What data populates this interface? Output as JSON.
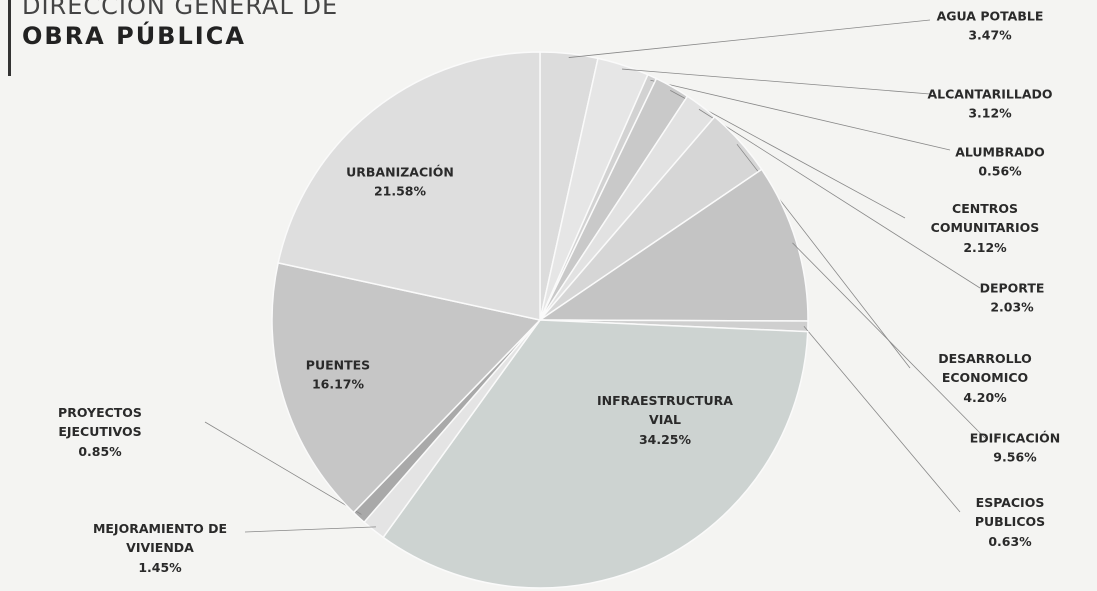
{
  "chart_data": {
    "type": "pie",
    "title": "DIRECCIÓN GENERAL DE",
    "subtitle": "OBRA PÚBLICA",
    "categories": [
      "AGUA POTABLE",
      "ALCANTARILLADO",
      "ALUMBRADO",
      "CENTROS COMUNITARIOS",
      "DEPORTE",
      "DESARROLLO ECONOMICO",
      "EDIFICACIÓN",
      "ESPACIOS PUBLICOS",
      "INFRAESTRUCTURA VIAL",
      "MEJORAMIENTO DE VIVIENDA",
      "PROYECTOS EJECUTIVOS",
      "PUENTES",
      "URBANIZACIÓN"
    ],
    "values": [
      3.47,
      3.12,
      0.56,
      2.12,
      2.03,
      4.2,
      9.56,
      0.63,
      34.25,
      1.45,
      0.85,
      16.17,
      21.58
    ],
    "value_labels": [
      "3.47%",
      "3.12%",
      "0.56%",
      "2.12%",
      "2.03%",
      "4.20%",
      "9.56%",
      "0.63%",
      "34.25%",
      "1.45%",
      "0.85%",
      "16.17%",
      "21.58%"
    ],
    "colors": [
      "#dcdcdc",
      "#e6e6e6",
      "#d2d2d2",
      "#c9c9c9",
      "#e2e2e2",
      "#d6d6d6",
      "#c4c4c4",
      "#cfcfcf",
      "#cdd3d1",
      "#e4e4e4",
      "#a9a9a9",
      "#c6c6c6",
      "#dedede"
    ]
  }
}
